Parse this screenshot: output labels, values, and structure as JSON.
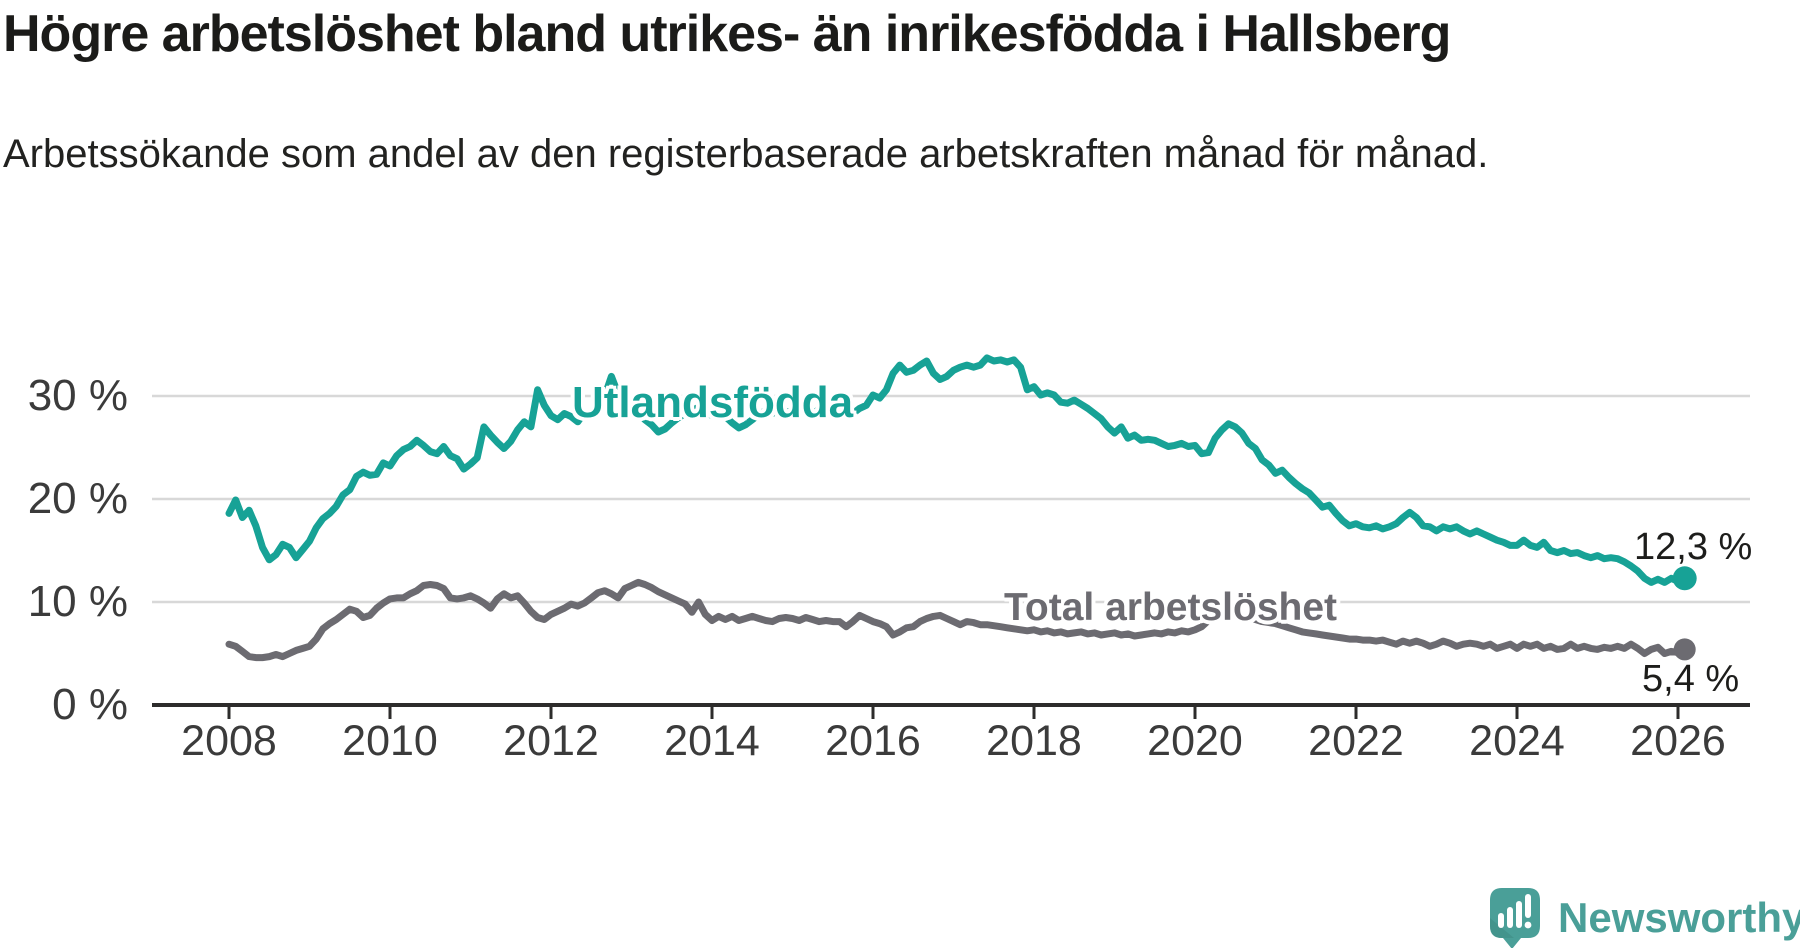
{
  "title": "Högre arbetslöshet bland utrikes- än inrikesfödda i Hallsberg",
  "subtitle": "Arbetssökande som andel av den registerbaserade arbetskraften månad för månad.",
  "series_labels": {
    "foreign": "Utlandsfödda",
    "total": "Total arbetslöshet"
  },
  "end_labels": {
    "foreign": "12,3 %",
    "total": "5,4 %"
  },
  "logo": {
    "text": "Newsworthy",
    "icon": "speech-bubble-bar-chart-icon",
    "color": "#4a9f98"
  },
  "colors": {
    "foreign_line": "#17a296",
    "total_line": "#6c6b71",
    "gridline": "#d8d8d8",
    "axis": "#2d2c2b",
    "tick_text": "#3b3b3b",
    "title_text": "#1b1b19"
  },
  "chart_data": {
    "type": "line",
    "title": "Högre arbetslöshet bland utrikes- än inrikesfödda i Hallsberg",
    "subtitle": "Arbetssökande som andel av den registerbaserade arbetskraften månad för månad.",
    "x_unit": "month",
    "x_start": "2008-01",
    "x_end": "2026-02",
    "ylim": [
      0,
      34
    ],
    "grid": "horizontal",
    "legend_position": "inline-labels",
    "xticks": [
      {
        "year": 2008,
        "label": "2008"
      },
      {
        "year": 2010,
        "label": "2010"
      },
      {
        "year": 2012,
        "label": "2012"
      },
      {
        "year": 2014,
        "label": "2014"
      },
      {
        "year": 2016,
        "label": "2016"
      },
      {
        "year": 2018,
        "label": "2018"
      },
      {
        "year": 2020,
        "label": "2020"
      },
      {
        "year": 2022,
        "label": "2022"
      },
      {
        "year": 2024,
        "label": "2024"
      },
      {
        "year": 2026,
        "label": "2026"
      }
    ],
    "yticks": [
      {
        "value": 0,
        "label": "0 %"
      },
      {
        "value": 10,
        "label": "10 %"
      },
      {
        "value": 20,
        "label": "20 %"
      },
      {
        "value": 30,
        "label": "30 %"
      }
    ],
    "series": [
      {
        "name": "Utlandsfödda",
        "color": "#17a296",
        "dot_radius": 12,
        "last_value_label": "12,3 %",
        "values": [
          18.6,
          19.9,
          18.2,
          18.9,
          17.4,
          15.3,
          14.1,
          14.6,
          15.6,
          15.3,
          14.3,
          15.1,
          15.9,
          17.2,
          18.1,
          18.6,
          19.3,
          20.4,
          20.9,
          22.2,
          22.6,
          22.3,
          22.4,
          23.5,
          23.2,
          24.2,
          24.8,
          25.1,
          25.7,
          25.2,
          24.6,
          24.4,
          25.1,
          24.2,
          23.9,
          22.9,
          23.4,
          24.0,
          27.0,
          26.2,
          25.5,
          24.9,
          25.6,
          26.7,
          27.5,
          27.0,
          30.6,
          29.1,
          28.1,
          27.7,
          28.3,
          28.0,
          27.5,
          28.4,
          28.0,
          29.0,
          30.0,
          31.9,
          30.2,
          29.0,
          28.6,
          28.3,
          27.7,
          27.2,
          26.5,
          26.8,
          27.4,
          27.9,
          28.3,
          28.6,
          28.9,
          28.4,
          28.1,
          28.5,
          28.0,
          27.4,
          26.9,
          27.2,
          27.7,
          28.2,
          28.6,
          28.3,
          28.7,
          28.4,
          28.6,
          28.9,
          28.4,
          28.1,
          28.8,
          28.3,
          28.6,
          28.1,
          28.4,
          28.3,
          28.8,
          29.1,
          30.1,
          29.8,
          30.6,
          32.2,
          33.0,
          32.3,
          32.5,
          33.0,
          33.4,
          32.2,
          31.6,
          31.9,
          32.5,
          32.8,
          33.0,
          32.8,
          33.0,
          33.7,
          33.4,
          33.5,
          33.3,
          33.5,
          32.8,
          30.6,
          30.9,
          30.1,
          30.3,
          30.1,
          29.4,
          29.3,
          29.6,
          29.2,
          28.8,
          28.3,
          27.8,
          27.0,
          26.4,
          27.0,
          25.9,
          26.2,
          25.7,
          25.8,
          25.7,
          25.4,
          25.1,
          25.2,
          25.4,
          25.1,
          25.2,
          24.4,
          24.5,
          25.9,
          26.7,
          27.3,
          27.0,
          26.4,
          25.4,
          24.9,
          23.8,
          23.3,
          22.5,
          22.8,
          22.1,
          21.5,
          21.0,
          20.6,
          19.9,
          19.2,
          19.4,
          18.6,
          17.9,
          17.4,
          17.6,
          17.3,
          17.2,
          17.4,
          17.1,
          17.3,
          17.6,
          18.2,
          18.7,
          18.2,
          17.4,
          17.3,
          16.9,
          17.3,
          17.1,
          17.3,
          16.9,
          16.6,
          16.9,
          16.6,
          16.3,
          16.0,
          15.8,
          15.5,
          15.5,
          16.0,
          15.5,
          15.3,
          15.8,
          15.0,
          14.8,
          15.0,
          14.7,
          14.8,
          14.5,
          14.3,
          14.5,
          14.2,
          14.3,
          14.2,
          13.9,
          13.5,
          13.0,
          12.3,
          11.9,
          12.2,
          11.9,
          12.3,
          12.0,
          12.3
        ]
      },
      {
        "name": "Total arbetslöshet",
        "color": "#6c6b71",
        "dot_radius": 11,
        "last_value_label": "5,4 %",
        "values": [
          5.9,
          5.7,
          5.2,
          4.7,
          4.6,
          4.6,
          4.7,
          4.9,
          4.7,
          5.0,
          5.3,
          5.5,
          5.7,
          6.4,
          7.4,
          7.9,
          8.3,
          8.8,
          9.3,
          9.1,
          8.5,
          8.7,
          9.4,
          9.9,
          10.3,
          10.4,
          10.4,
          10.8,
          11.1,
          11.6,
          11.7,
          11.6,
          11.3,
          10.4,
          10.3,
          10.4,
          10.6,
          10.3,
          9.9,
          9.4,
          10.3,
          10.8,
          10.4,
          10.6,
          9.9,
          9.1,
          8.5,
          8.3,
          8.8,
          9.1,
          9.4,
          9.8,
          9.6,
          9.9,
          10.4,
          10.9,
          11.1,
          10.8,
          10.4,
          11.3,
          11.6,
          11.9,
          11.7,
          11.4,
          11.0,
          10.7,
          10.4,
          10.1,
          9.8,
          9.0,
          10.0,
          8.8,
          8.2,
          8.6,
          8.3,
          8.6,
          8.2,
          8.4,
          8.6,
          8.4,
          8.2,
          8.1,
          8.4,
          8.5,
          8.4,
          8.2,
          8.5,
          8.3,
          8.1,
          8.2,
          8.1,
          8.1,
          7.6,
          8.1,
          8.7,
          8.4,
          8.1,
          7.9,
          7.6,
          6.8,
          7.1,
          7.5,
          7.6,
          8.1,
          8.4,
          8.6,
          8.7,
          8.4,
          8.1,
          7.8,
          8.1,
          8.0,
          7.8,
          7.8,
          7.7,
          7.6,
          7.5,
          7.4,
          7.3,
          7.2,
          7.3,
          7.1,
          7.2,
          7.0,
          7.1,
          6.9,
          7.0,
          7.1,
          6.9,
          7.0,
          6.8,
          6.9,
          7.0,
          6.8,
          6.9,
          6.7,
          6.8,
          6.9,
          7.0,
          6.9,
          7.1,
          7.0,
          7.2,
          7.1,
          7.3,
          7.6,
          8.2,
          8.8,
          9.2,
          9.0,
          8.9,
          8.7,
          8.5,
          8.3,
          8.1,
          8.0,
          7.9,
          7.7,
          7.5,
          7.3,
          7.1,
          7.0,
          6.9,
          6.8,
          6.7,
          6.6,
          6.5,
          6.4,
          6.4,
          6.3,
          6.3,
          6.2,
          6.3,
          6.1,
          5.9,
          6.2,
          6.0,
          6.2,
          6.0,
          5.7,
          5.9,
          6.2,
          6.0,
          5.7,
          5.9,
          6.0,
          5.9,
          5.7,
          5.9,
          5.5,
          5.7,
          5.9,
          5.5,
          5.9,
          5.7,
          5.9,
          5.5,
          5.7,
          5.4,
          5.5,
          5.9,
          5.5,
          5.7,
          5.5,
          5.4,
          5.6,
          5.5,
          5.7,
          5.5,
          5.9,
          5.5,
          5.0,
          5.4,
          5.6,
          5.0,
          5.2,
          5.1,
          5.4
        ]
      }
    ]
  }
}
